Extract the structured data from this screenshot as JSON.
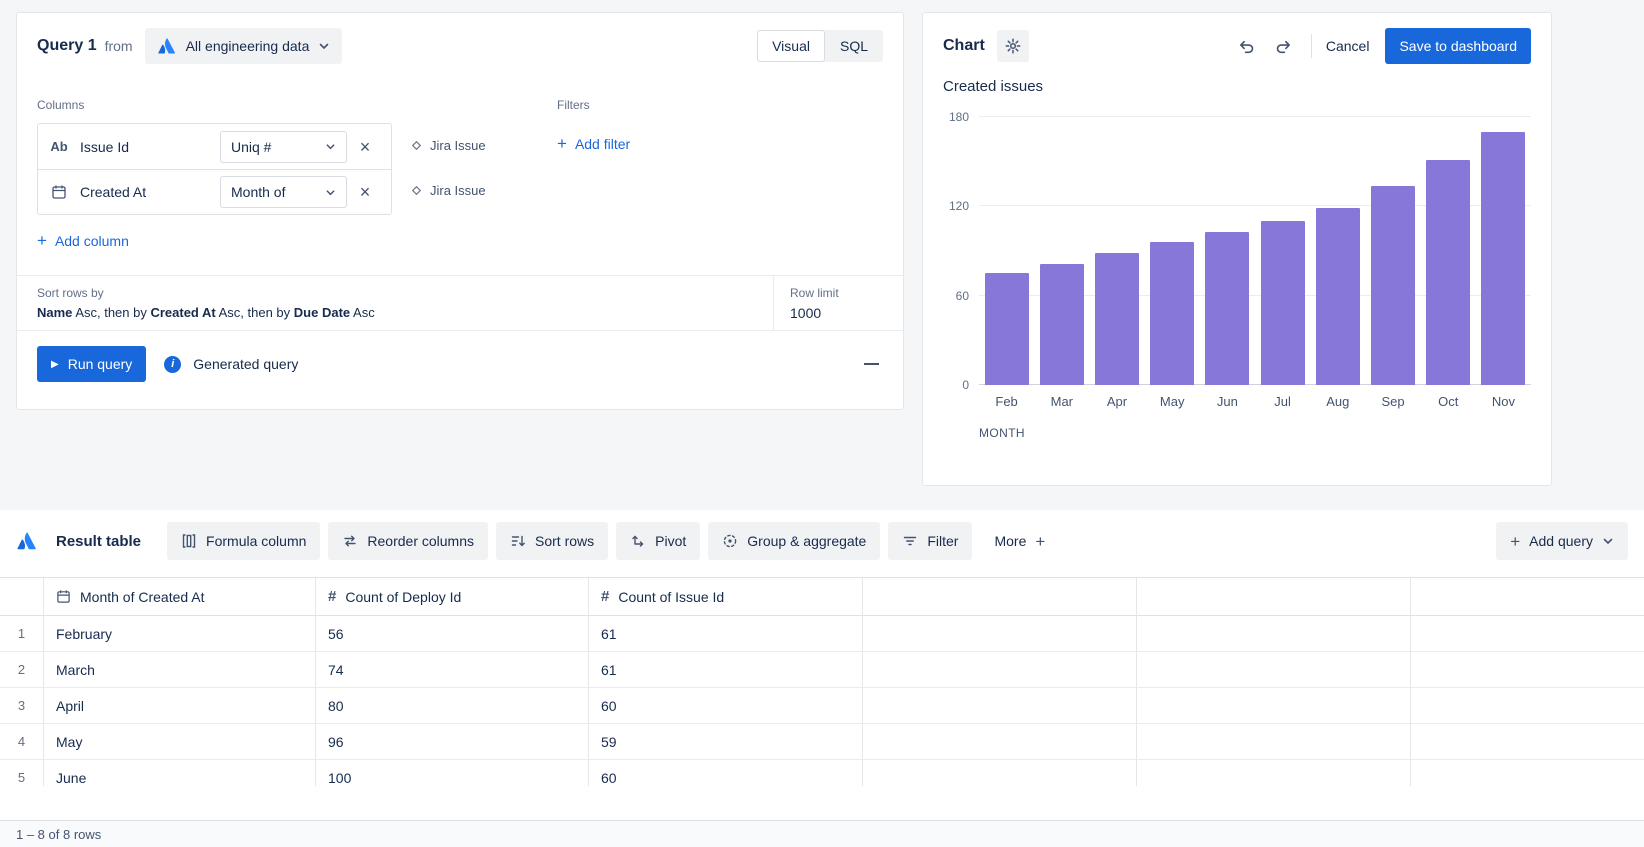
{
  "query_panel": {
    "title": "Query 1",
    "from_label": "from",
    "datasource_label": "All engineering data",
    "visual_label": "Visual",
    "sql_label": "SQL",
    "columns_label": "Columns",
    "columns": [
      {
        "type_label": "Ab",
        "name": "Issue Id",
        "agg": "Uniq #",
        "source": "Jira Issue"
      },
      {
        "name": "Created At",
        "agg": "Month of",
        "source": "Jira Issue"
      }
    ],
    "add_column_label": "Add column",
    "filters_label": "Filters",
    "add_filter_label": "Add filter",
    "sort": {
      "label": "Sort rows by",
      "field1": "Name",
      "sep1": " Asc, then by ",
      "field2": "Created At",
      "sep2": " Asc, then by ",
      "field3": "Due Date",
      "sep3": " Asc"
    },
    "row_limit_label": "Row limit",
    "row_limit_value": "1000",
    "run_button_label": "Run query",
    "generated_query_label": "Generated query"
  },
  "chart_panel": {
    "title": "Chart",
    "cancel_label": "Cancel",
    "save_label": "Save to dashboard"
  },
  "chart_data": {
    "type": "bar",
    "title": "Created issues",
    "categories": [
      "Feb",
      "Mar",
      "Apr",
      "May",
      "Jun",
      "Jul",
      "Aug",
      "Sep",
      "Oct",
      "Nov"
    ],
    "values": [
      75,
      81,
      89,
      96,
      103,
      110,
      119,
      134,
      151,
      170
    ],
    "xlabel": "MONTH",
    "ylabel": "",
    "ylim": [
      0,
      180
    ],
    "yticks": [
      0,
      60,
      120,
      180
    ],
    "grid": true,
    "legend": false,
    "bar_color": "#8777d9"
  },
  "result_section": {
    "title": "Result table",
    "toolbar_buttons": [
      "Formula column",
      "Reorder columns",
      "Sort rows",
      "Pivot",
      "Group & aggregate",
      "Filter",
      "More"
    ],
    "add_query_label": "Add query",
    "status": "1 – 8 of 8 rows"
  },
  "table": {
    "headers": [
      "Month of Created At",
      "Count of Deploy Id",
      "Count of Issue Id"
    ],
    "rows": [
      {
        "num": "1",
        "month": "February",
        "deploys": "56",
        "issues": "61"
      },
      {
        "num": "2",
        "month": "March",
        "deploys": "74",
        "issues": "61"
      },
      {
        "num": "3",
        "month": "April",
        "deploys": "80",
        "issues": "60"
      },
      {
        "num": "4",
        "month": "May",
        "deploys": "96",
        "issues": "59"
      },
      {
        "num": "5",
        "month": "June",
        "deploys": "100",
        "issues": "60"
      }
    ]
  }
}
